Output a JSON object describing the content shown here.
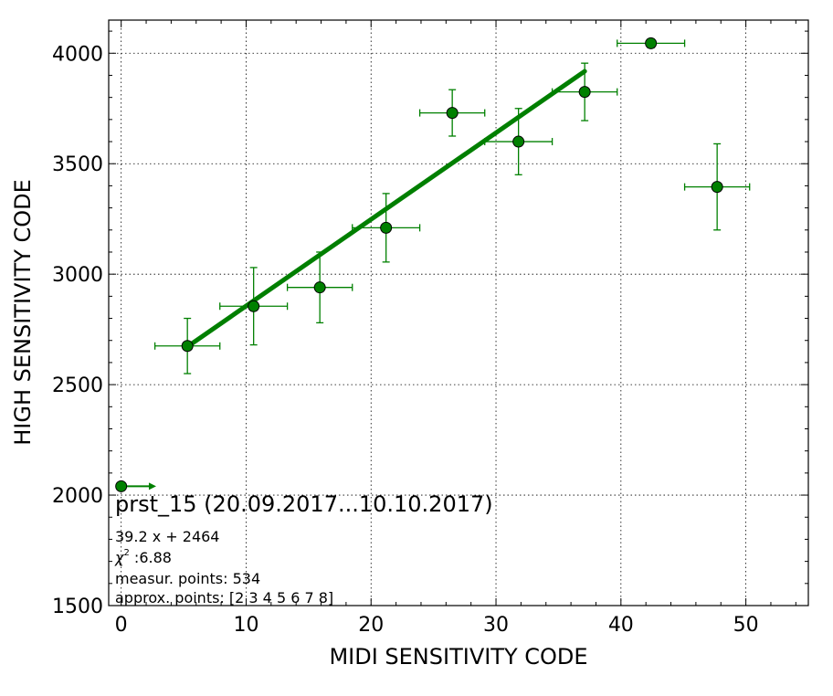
{
  "chart_data": {
    "type": "scatter",
    "xlabel": "MIDI SENSITIVITY CODE",
    "ylabel": "HIGH SENSITIVITY CODE",
    "xlim": [
      -1,
      55
    ],
    "ylim": [
      1500,
      4150
    ],
    "xticks": [
      0,
      10,
      20,
      30,
      40,
      50
    ],
    "yticks": [
      1500,
      2000,
      2500,
      3000,
      3500,
      4000
    ],
    "grid": true,
    "colors": {
      "marker": "#008000",
      "line": "#007f00",
      "errorbar": "#008000"
    },
    "points": [
      {
        "x": 5.3,
        "y": 2675,
        "xerr": 2.6,
        "yerr": 125
      },
      {
        "x": 10.6,
        "y": 2855,
        "xerr": 2.7,
        "yerr": 175
      },
      {
        "x": 15.9,
        "y": 2940,
        "xerr": 2.6,
        "yerr": 160
      },
      {
        "x": 21.2,
        "y": 3210,
        "xerr": 2.7,
        "yerr": 155
      },
      {
        "x": 26.5,
        "y": 3730,
        "xerr": 2.6,
        "yerr": 105
      },
      {
        "x": 31.8,
        "y": 3600,
        "xerr": 2.7,
        "yerr": 150
      },
      {
        "x": 37.1,
        "y": 3825,
        "xerr": 2.6,
        "yerr": 130
      },
      {
        "x": 42.4,
        "y": 4045,
        "xerr": 2.7,
        "yerr": 20
      },
      {
        "x": 47.7,
        "y": 3395,
        "xerr": 2.6,
        "yerr": 195
      }
    ],
    "arrow_point": {
      "x": 0,
      "y": 2040,
      "xerr_plus": 2.8,
      "yerr": 15
    },
    "fit": {
      "slope": 39.2,
      "intercept": 2464,
      "x_range": [
        5.3,
        37.1
      ]
    },
    "annotations": {
      "title": "prst_15 (20.09.2017...10.10.2017)",
      "equation": "39.2 x + 2464",
      "chi_symbol": "χ",
      "chi_sup": "2",
      "chi_value": " :6.88",
      "measur": "measur. points: 534",
      "approx": "approx. points: [2 3 4 5 6 7 8]"
    }
  }
}
